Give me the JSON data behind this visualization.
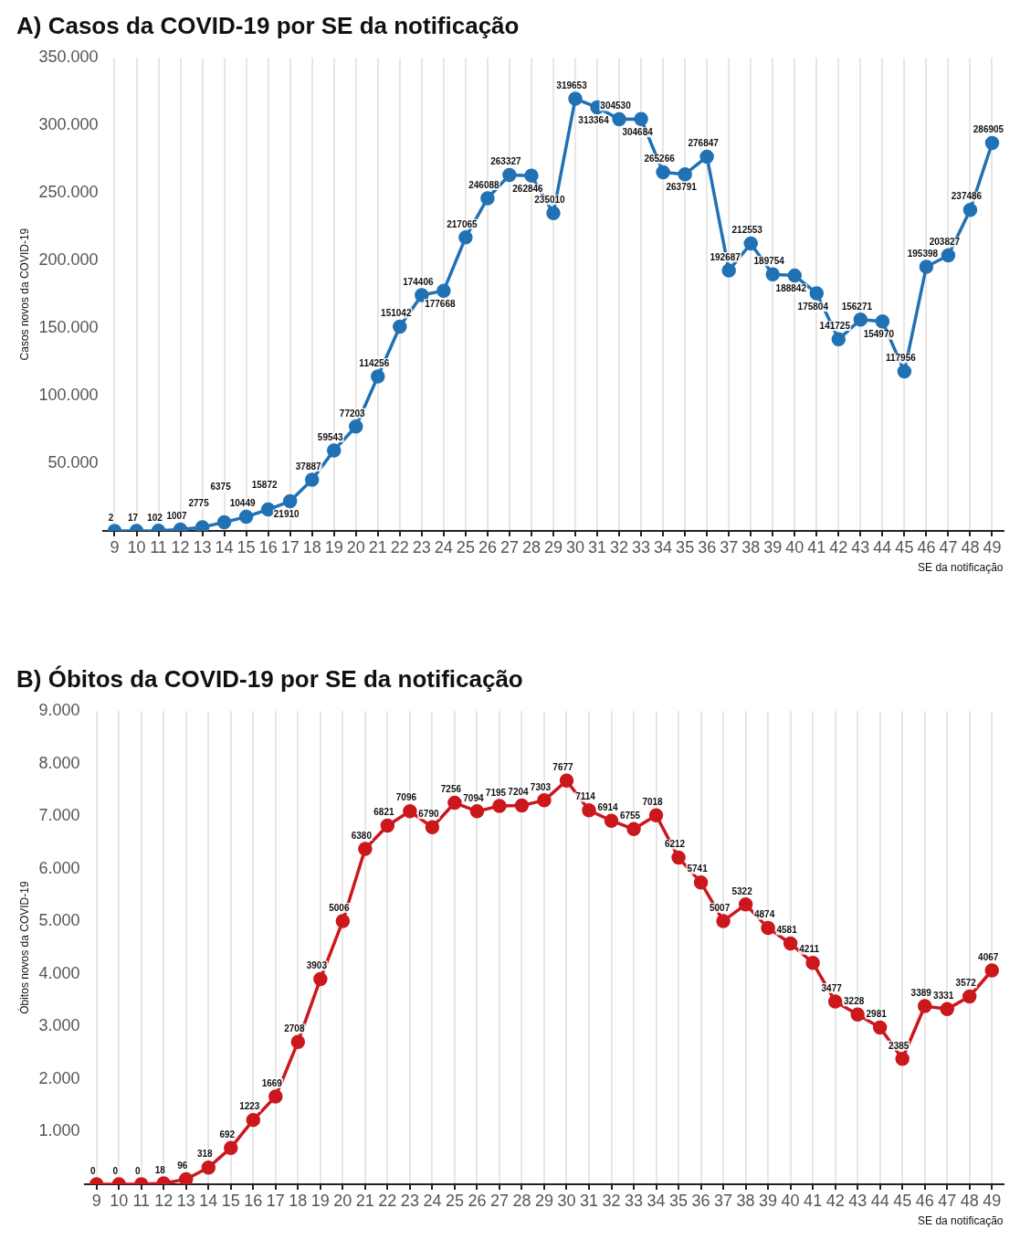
{
  "chart_data": [
    {
      "type": "line",
      "title": "A) Casos da COVID-19 por SE da notificação",
      "xlabel": "SE da notificação",
      "ylabel": "Casos novos da COVID-19",
      "categories": [
        "9",
        "10",
        "11",
        "12",
        "13",
        "14",
        "15",
        "16",
        "17",
        "18",
        "19",
        "20",
        "21",
        "22",
        "23",
        "24",
        "25",
        "26",
        "27",
        "28",
        "29",
        "30",
        "31",
        "32",
        "33",
        "34",
        "35",
        "36",
        "37",
        "38",
        "39",
        "40",
        "41",
        "42",
        "43",
        "44",
        "45",
        "46",
        "47",
        "48",
        "49"
      ],
      "series": [
        {
          "color": "#2171b5",
          "values": [
            2,
            17,
            102,
            1007,
            2775,
            6375,
            10449,
            15872,
            21910,
            37887,
            59543,
            77203,
            114256,
            151042,
            174406,
            177668,
            217065,
            246088,
            263327,
            262846,
            235010,
            319653,
            313364,
            304530,
            304684,
            265266,
            263791,
            276847,
            192687,
            212553,
            189754,
            188842,
            175804,
            141725,
            156271,
            154970,
            117956,
            195398,
            203827,
            237486,
            286905
          ]
        }
      ],
      "ylim": [
        0,
        350000
      ],
      "yticks": [
        {
          "value": 50000,
          "label": "50.000"
        },
        {
          "value": 100000,
          "label": "100.000"
        },
        {
          "value": 150000,
          "label": "150.000"
        },
        {
          "value": 200000,
          "label": "200.000"
        },
        {
          "value": 250000,
          "label": "250.000"
        },
        {
          "value": 300000,
          "label": "300.000"
        },
        {
          "value": 350000,
          "label": "350.000"
        }
      ],
      "grid": "x",
      "legend": false,
      "marker": "circle",
      "line_style": "solid",
      "data_labels": true
    },
    {
      "type": "line",
      "title": "B) Óbitos da COVID-19 por SE da notificação",
      "xlabel": "SE da notificação",
      "ylabel": "Óbitos novos da COVID-19",
      "categories": [
        "9",
        "10",
        "11",
        "12",
        "13",
        "14",
        "15",
        "16",
        "17",
        "18",
        "19",
        "20",
        "21",
        "22",
        "23",
        "24",
        "25",
        "26",
        "27",
        "28",
        "29",
        "30",
        "31",
        "32",
        "33",
        "34",
        "35",
        "36",
        "37",
        "38",
        "39",
        "40",
        "41",
        "42",
        "43",
        "44",
        "45",
        "46",
        "47",
        "48",
        "49"
      ],
      "series": [
        {
          "color": "#cb181d",
          "values": [
            0,
            0,
            0,
            18,
            96,
            318,
            692,
            1223,
            1669,
            2708,
            3903,
            5006,
            6380,
            6821,
            7096,
            6790,
            7256,
            7094,
            7195,
            7204,
            7303,
            7677,
            7114,
            6914,
            6755,
            7018,
            6212,
            5741,
            5007,
            5322,
            4874,
            4581,
            4211,
            3477,
            3228,
            2981,
            2385,
            3389,
            3331,
            3572,
            4067
          ]
        }
      ],
      "ylim": [
        0,
        9000
      ],
      "yticks": [
        {
          "value": 1000,
          "label": "1.000"
        },
        {
          "value": 2000,
          "label": "2.000"
        },
        {
          "value": 3000,
          "label": "3.000"
        },
        {
          "value": 4000,
          "label": "4.000"
        },
        {
          "value": 5000,
          "label": "5.000"
        },
        {
          "value": 6000,
          "label": "6.000"
        },
        {
          "value": 7000,
          "label": "7.000"
        },
        {
          "value": 8000,
          "label": "8.000"
        },
        {
          "value": 9000,
          "label": "9.000"
        }
      ],
      "grid": "x",
      "legend": false,
      "marker": "circle",
      "line_style": "solid",
      "data_labels": true
    }
  ]
}
